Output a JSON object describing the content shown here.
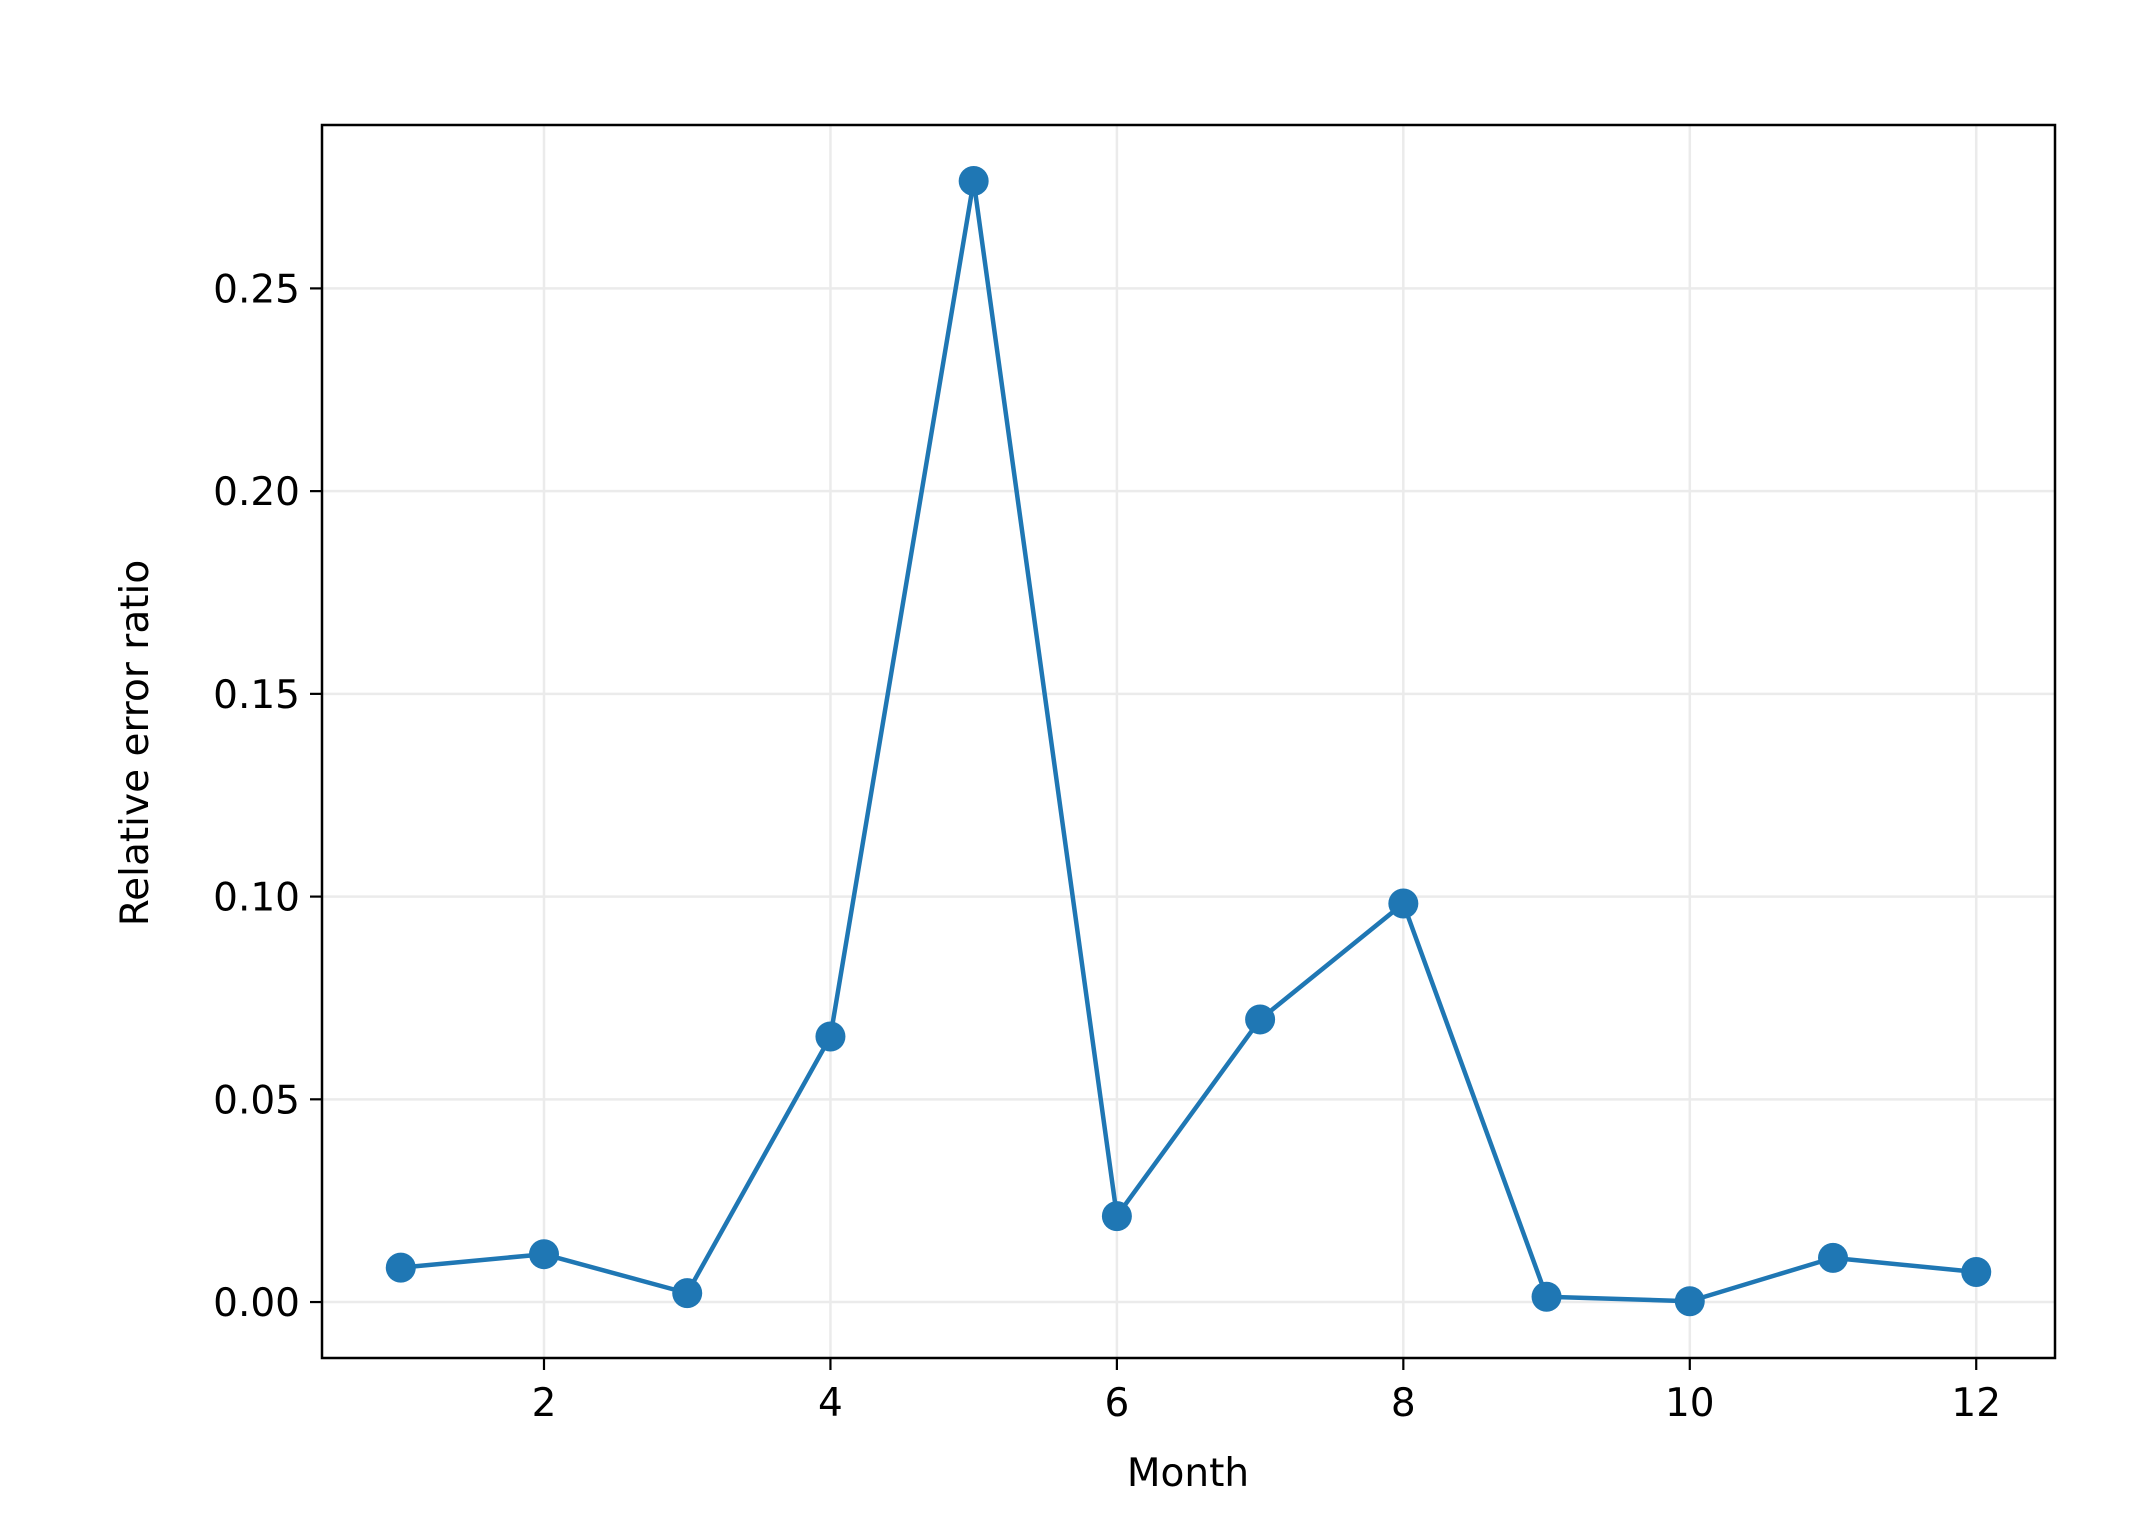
{
  "chart_data": {
    "type": "line",
    "title": "",
    "xlabel": "Month",
    "ylabel": "Relative error ratio",
    "xlim": [
      0.45,
      12.55
    ],
    "ylim": [
      -0.0138,
      0.2903
    ],
    "xticks": [
      2,
      4,
      6,
      8,
      10,
      12
    ],
    "xtick_labels": [
      "2",
      "4",
      "6",
      "8",
      "10",
      "12"
    ],
    "yticks": [
      0.0,
      0.05,
      0.1,
      0.15,
      0.2,
      0.25
    ],
    "ytick_labels": [
      "0.00",
      "0.05",
      "0.10",
      "0.15",
      "0.20",
      "0.25"
    ],
    "grid": true,
    "legend": "none",
    "series": [
      {
        "color": "#1f77b4",
        "marker": "circle",
        "x": [
          1,
          2,
          3,
          4,
          5,
          6,
          7,
          8,
          9,
          10,
          11,
          12
        ],
        "y": [
          0.0085,
          0.0118,
          0.0022,
          0.0655,
          0.2765,
          0.0212,
          0.0697,
          0.0983,
          0.0013,
          0.0002,
          0.0109,
          0.0074
        ]
      }
    ]
  }
}
